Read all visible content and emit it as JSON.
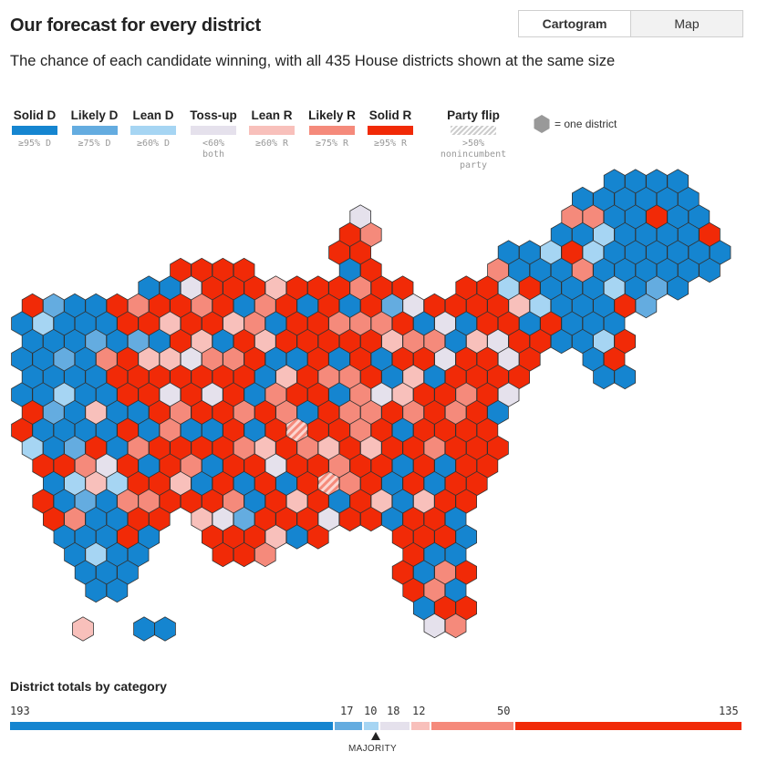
{
  "header": {
    "title": "Our forecast for every district",
    "subtitle": "The chance of each candidate winning, with all 435 House districts shown at the same size"
  },
  "view_toggle": {
    "options": [
      "Cartogram",
      "Map"
    ],
    "selected": "Cartogram"
  },
  "colors": {
    "solid_d": "#1585d0",
    "likely_d": "#64ace0",
    "lean_d": "#a6d5f3",
    "toss_up": "#e5e1ec",
    "lean_r": "#f8c0bb",
    "likely_r": "#f58a7b",
    "solid_r": "#f12a07",
    "hex_key": "#999999"
  },
  "legend": [
    {
      "key": "solid_d",
      "label": "Solid D",
      "threshold": "≥95% D"
    },
    {
      "key": "likely_d",
      "label": "Likely D",
      "threshold": "≥75% D"
    },
    {
      "key": "lean_d",
      "label": "Lean D",
      "threshold": "≥60% D"
    },
    {
      "key": "toss_up",
      "label": "Toss-up",
      "threshold": "<60%\nboth"
    },
    {
      "key": "lean_r",
      "label": "Lean R",
      "threshold": "≥60% R"
    },
    {
      "key": "likely_r",
      "label": "Likely R",
      "threshold": "≥75% R"
    },
    {
      "key": "solid_r",
      "label": "Solid R",
      "threshold": "≥95% R"
    },
    {
      "key": "party_flip",
      "label": "Party flip",
      "threshold": ">50%\nnonincumbent\nparty"
    }
  ],
  "hex_key_label": "= one district",
  "totals": {
    "title": "District totals by category",
    "majority_label": "MAJORITY",
    "segments": [
      {
        "key": "solid_d",
        "count": 193
      },
      {
        "key": "likely_d",
        "count": 17
      },
      {
        "key": "lean_d",
        "count": 10
      },
      {
        "key": "toss_up",
        "count": 18
      },
      {
        "key": "lean_r",
        "count": 12
      },
      {
        "key": "likely_r",
        "count": 50
      },
      {
        "key": "solid_r",
        "count": 135
      }
    ]
  },
  "map": {
    "total_districts": 435
  }
}
